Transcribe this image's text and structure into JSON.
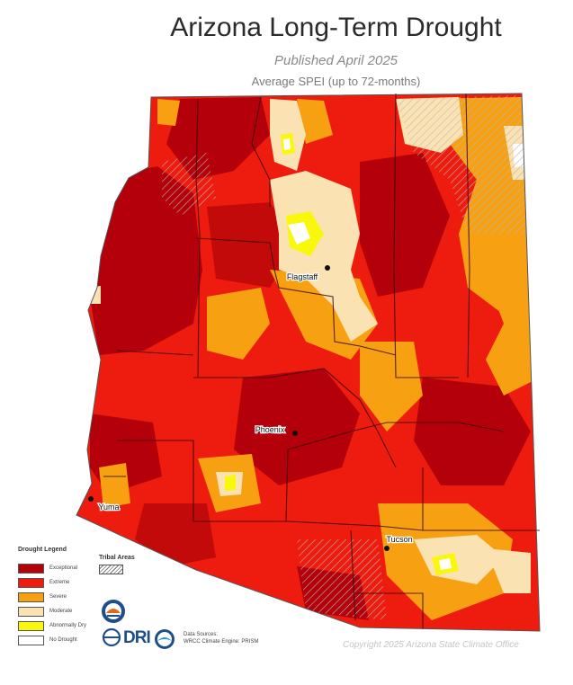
{
  "header": {
    "title": "Arizona Long-Term Drought",
    "subtitle": "Published April 2025",
    "spei": "Average SPEI (up to 72-months)"
  },
  "cities": {
    "flagstaff": "Flagstaff",
    "phoenix": "Phoenix",
    "yuma": "Yuma",
    "tucson": "Tucson"
  },
  "legend": {
    "title": "Drought Legend",
    "items": [
      {
        "label": "Exceptional",
        "color": "#b3000b"
      },
      {
        "label": "Extreme",
        "color": "#ee1c0e"
      },
      {
        "label": "Severe",
        "color": "#f7a011"
      },
      {
        "label": "Moderate",
        "color": "#fbe2b2"
      },
      {
        "label": "Abnormally Dry",
        "color": "#f8f70c"
      },
      {
        "label": "No Drought",
        "color": "#ffffff"
      }
    ],
    "tribal_title": "Tribal Areas"
  },
  "logos": {
    "dri": "DRI"
  },
  "sources": {
    "line1": "Data Sources:",
    "line2": "WRCC Climate Engine: PRISM"
  },
  "copyright": "Copyright 2025 Arizona State Climate Office"
}
